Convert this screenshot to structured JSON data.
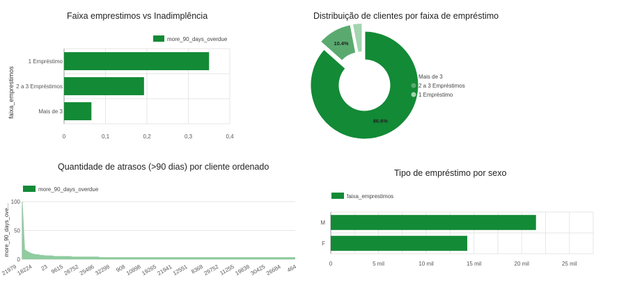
{
  "chart_data": [
    {
      "type": "bar",
      "orientation": "horizontal",
      "title": "Faixa emprestimos vs Inadimplência",
      "ylabel": "faixa_emprestimos",
      "xlabel": "",
      "categories": [
        "1 Empréstimo",
        "2 a 3 Empréstimos",
        "Mais de 3"
      ],
      "series": [
        {
          "name": "more_90_days_overdue",
          "values": [
            0.35,
            0.193,
            0.066
          ]
        }
      ],
      "xlim": [
        0,
        0.4
      ],
      "xticks": [
        "0",
        "0,1",
        "0,2",
        "0,3",
        "0,4"
      ],
      "legend_position": "top",
      "grid": true,
      "color": "#138a36"
    },
    {
      "type": "pie",
      "donut": true,
      "title": "Distribuição de clientes por faixa de empréstimo",
      "slices": [
        {
          "label": "Mais de 3",
          "value": 86.6,
          "display": "86.6%",
          "color": "#138a36"
        },
        {
          "label": "2 a 3 Empréstimos",
          "value": 10.4,
          "display": "10.4%",
          "color": "#5aaa70"
        },
        {
          "label": "1 Empréstimo",
          "value": 3.0,
          "display": "",
          "color": "#a3d4b0"
        }
      ],
      "legend_position": "right"
    },
    {
      "type": "area",
      "title": "Quantidade de atrasos (>90 dias) por cliente ordenado",
      "ylabel": "more_90_days_ove...",
      "xlabel": "",
      "series": [
        {
          "name": "more_90_days_overdue"
        }
      ],
      "ylim": [
        0,
        100
      ],
      "yticks": [
        "0",
        "50",
        "100"
      ],
      "xticks": [
        "21979",
        "18224",
        "23",
        "9615",
        "28752",
        "25486",
        "32298",
        "908",
        "10898",
        "19265",
        "21941",
        "12551",
        "8368",
        "29752",
        "11255",
        "19838",
        "30425",
        "26684",
        "464"
      ],
      "values": [
        98,
        17,
        14,
        12,
        10,
        9,
        8,
        8,
        7,
        7,
        6,
        6,
        6,
        6,
        5,
        5,
        5,
        5,
        5,
        5,
        5,
        5,
        4,
        4,
        4,
        4,
        4,
        4,
        4,
        4,
        4,
        4,
        4,
        4,
        3,
        3,
        3,
        3,
        3,
        3,
        3,
        3,
        3,
        3,
        3,
        3,
        3,
        3,
        3,
        3,
        3,
        3,
        3,
        3,
        3,
        3,
        3,
        3,
        3,
        3,
        3,
        3,
        3,
        3,
        3,
        3,
        3,
        3,
        3,
        3,
        3,
        3,
        3,
        3,
        3,
        3,
        3,
        3,
        3,
        3,
        3,
        3,
        3,
        3,
        3,
        3,
        3,
        3,
        3,
        3,
        3,
        3,
        3,
        3,
        3,
        3,
        3,
        3,
        3,
        3,
        3,
        3,
        3,
        3,
        3,
        3,
        3,
        3,
        3,
        3,
        3,
        3,
        3,
        3,
        3,
        3,
        3,
        3,
        3,
        3
      ],
      "legend_position": "top-left",
      "grid": true,
      "color": "#138a36",
      "fill": "#8fcc9f"
    },
    {
      "type": "bar",
      "orientation": "horizontal",
      "title": "Tipo de empréstimo por sexo",
      "xlabel": "",
      "ylabel": "",
      "categories": [
        "M",
        "F"
      ],
      "series": [
        {
          "name": "faixa_emprestimos",
          "values": [
            21500,
            14300
          ]
        }
      ],
      "xlim": [
        0,
        27500
      ],
      "xtick_values": [
        0,
        5000,
        10000,
        15000,
        20000,
        25000
      ],
      "xticks": [
        "0",
        "5 mil",
        "10 mil",
        "15 mil",
        "20 mil",
        "25 mil"
      ],
      "legend_position": "top-left",
      "grid": true,
      "color": "#138a36"
    }
  ]
}
